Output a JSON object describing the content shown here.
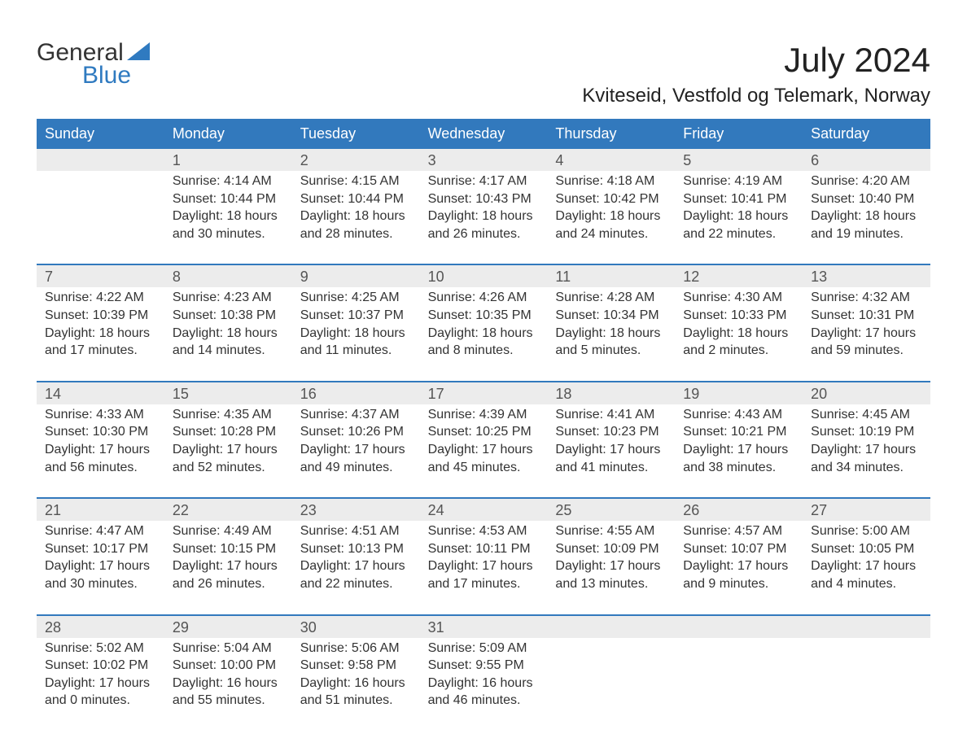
{
  "logo": {
    "line1": "General",
    "line2": "Blue",
    "triangle_color": "#2f7ac0",
    "text_color_1": "#333333",
    "text_color_2": "#2f7ac0"
  },
  "header": {
    "title": "July 2024",
    "location": "Kviteseid, Vestfold og Telemark, Norway"
  },
  "styling": {
    "header_bg": "#3279bd",
    "header_text": "#ffffff",
    "daynum_bg": "#ececec",
    "row_border": "#3279bd",
    "body_bg": "#ffffff",
    "text_color": "#333333",
    "font_family": "Arial",
    "title_fontsize": 42,
    "location_fontsize": 24,
    "dow_fontsize": 18,
    "cell_fontsize": 16
  },
  "days_of_week": [
    "Sunday",
    "Monday",
    "Tuesday",
    "Wednesday",
    "Thursday",
    "Friday",
    "Saturday"
  ],
  "weeks": [
    [
      null,
      {
        "n": "1",
        "sunrise": "Sunrise: 4:14 AM",
        "sunset": "Sunset: 10:44 PM",
        "d1": "Daylight: 18 hours",
        "d2": "and 30 minutes."
      },
      {
        "n": "2",
        "sunrise": "Sunrise: 4:15 AM",
        "sunset": "Sunset: 10:44 PM",
        "d1": "Daylight: 18 hours",
        "d2": "and 28 minutes."
      },
      {
        "n": "3",
        "sunrise": "Sunrise: 4:17 AM",
        "sunset": "Sunset: 10:43 PM",
        "d1": "Daylight: 18 hours",
        "d2": "and 26 minutes."
      },
      {
        "n": "4",
        "sunrise": "Sunrise: 4:18 AM",
        "sunset": "Sunset: 10:42 PM",
        "d1": "Daylight: 18 hours",
        "d2": "and 24 minutes."
      },
      {
        "n": "5",
        "sunrise": "Sunrise: 4:19 AM",
        "sunset": "Sunset: 10:41 PM",
        "d1": "Daylight: 18 hours",
        "d2": "and 22 minutes."
      },
      {
        "n": "6",
        "sunrise": "Sunrise: 4:20 AM",
        "sunset": "Sunset: 10:40 PM",
        "d1": "Daylight: 18 hours",
        "d2": "and 19 minutes."
      }
    ],
    [
      {
        "n": "7",
        "sunrise": "Sunrise: 4:22 AM",
        "sunset": "Sunset: 10:39 PM",
        "d1": "Daylight: 18 hours",
        "d2": "and 17 minutes."
      },
      {
        "n": "8",
        "sunrise": "Sunrise: 4:23 AM",
        "sunset": "Sunset: 10:38 PM",
        "d1": "Daylight: 18 hours",
        "d2": "and 14 minutes."
      },
      {
        "n": "9",
        "sunrise": "Sunrise: 4:25 AM",
        "sunset": "Sunset: 10:37 PM",
        "d1": "Daylight: 18 hours",
        "d2": "and 11 minutes."
      },
      {
        "n": "10",
        "sunrise": "Sunrise: 4:26 AM",
        "sunset": "Sunset: 10:35 PM",
        "d1": "Daylight: 18 hours",
        "d2": "and 8 minutes."
      },
      {
        "n": "11",
        "sunrise": "Sunrise: 4:28 AM",
        "sunset": "Sunset: 10:34 PM",
        "d1": "Daylight: 18 hours",
        "d2": "and 5 minutes."
      },
      {
        "n": "12",
        "sunrise": "Sunrise: 4:30 AM",
        "sunset": "Sunset: 10:33 PM",
        "d1": "Daylight: 18 hours",
        "d2": "and 2 minutes."
      },
      {
        "n": "13",
        "sunrise": "Sunrise: 4:32 AM",
        "sunset": "Sunset: 10:31 PM",
        "d1": "Daylight: 17 hours",
        "d2": "and 59 minutes."
      }
    ],
    [
      {
        "n": "14",
        "sunrise": "Sunrise: 4:33 AM",
        "sunset": "Sunset: 10:30 PM",
        "d1": "Daylight: 17 hours",
        "d2": "and 56 minutes."
      },
      {
        "n": "15",
        "sunrise": "Sunrise: 4:35 AM",
        "sunset": "Sunset: 10:28 PM",
        "d1": "Daylight: 17 hours",
        "d2": "and 52 minutes."
      },
      {
        "n": "16",
        "sunrise": "Sunrise: 4:37 AM",
        "sunset": "Sunset: 10:26 PM",
        "d1": "Daylight: 17 hours",
        "d2": "and 49 minutes."
      },
      {
        "n": "17",
        "sunrise": "Sunrise: 4:39 AM",
        "sunset": "Sunset: 10:25 PM",
        "d1": "Daylight: 17 hours",
        "d2": "and 45 minutes."
      },
      {
        "n": "18",
        "sunrise": "Sunrise: 4:41 AM",
        "sunset": "Sunset: 10:23 PM",
        "d1": "Daylight: 17 hours",
        "d2": "and 41 minutes."
      },
      {
        "n": "19",
        "sunrise": "Sunrise: 4:43 AM",
        "sunset": "Sunset: 10:21 PM",
        "d1": "Daylight: 17 hours",
        "d2": "and 38 minutes."
      },
      {
        "n": "20",
        "sunrise": "Sunrise: 4:45 AM",
        "sunset": "Sunset: 10:19 PM",
        "d1": "Daylight: 17 hours",
        "d2": "and 34 minutes."
      }
    ],
    [
      {
        "n": "21",
        "sunrise": "Sunrise: 4:47 AM",
        "sunset": "Sunset: 10:17 PM",
        "d1": "Daylight: 17 hours",
        "d2": "and 30 minutes."
      },
      {
        "n": "22",
        "sunrise": "Sunrise: 4:49 AM",
        "sunset": "Sunset: 10:15 PM",
        "d1": "Daylight: 17 hours",
        "d2": "and 26 minutes."
      },
      {
        "n": "23",
        "sunrise": "Sunrise: 4:51 AM",
        "sunset": "Sunset: 10:13 PM",
        "d1": "Daylight: 17 hours",
        "d2": "and 22 minutes."
      },
      {
        "n": "24",
        "sunrise": "Sunrise: 4:53 AM",
        "sunset": "Sunset: 10:11 PM",
        "d1": "Daylight: 17 hours",
        "d2": "and 17 minutes."
      },
      {
        "n": "25",
        "sunrise": "Sunrise: 4:55 AM",
        "sunset": "Sunset: 10:09 PM",
        "d1": "Daylight: 17 hours",
        "d2": "and 13 minutes."
      },
      {
        "n": "26",
        "sunrise": "Sunrise: 4:57 AM",
        "sunset": "Sunset: 10:07 PM",
        "d1": "Daylight: 17 hours",
        "d2": "and 9 minutes."
      },
      {
        "n": "27",
        "sunrise": "Sunrise: 5:00 AM",
        "sunset": "Sunset: 10:05 PM",
        "d1": "Daylight: 17 hours",
        "d2": "and 4 minutes."
      }
    ],
    [
      {
        "n": "28",
        "sunrise": "Sunrise: 5:02 AM",
        "sunset": "Sunset: 10:02 PM",
        "d1": "Daylight: 17 hours",
        "d2": "and 0 minutes."
      },
      {
        "n": "29",
        "sunrise": "Sunrise: 5:04 AM",
        "sunset": "Sunset: 10:00 PM",
        "d1": "Daylight: 16 hours",
        "d2": "and 55 minutes."
      },
      {
        "n": "30",
        "sunrise": "Sunrise: 5:06 AM",
        "sunset": "Sunset: 9:58 PM",
        "d1": "Daylight: 16 hours",
        "d2": "and 51 minutes."
      },
      {
        "n": "31",
        "sunrise": "Sunrise: 5:09 AM",
        "sunset": "Sunset: 9:55 PM",
        "d1": "Daylight: 16 hours",
        "d2": "and 46 minutes."
      },
      null,
      null,
      null
    ]
  ]
}
